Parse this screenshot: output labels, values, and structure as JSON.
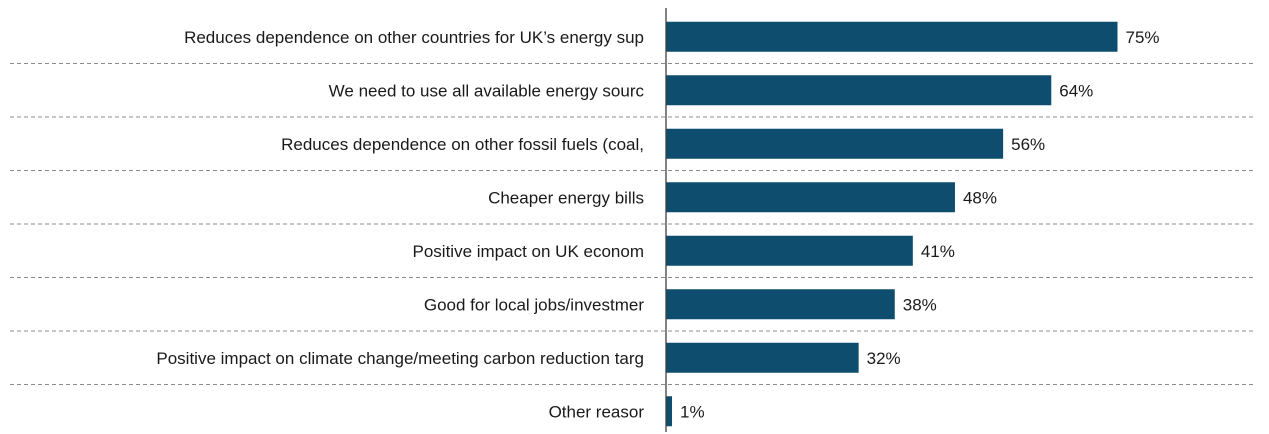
{
  "chart_data": {
    "type": "bar",
    "orientation": "horizontal",
    "categories": [
      "Reduces dependence on other countries for UK’s energy sup",
      "We need to use all available energy sourc",
      "Reduces dependence on other fossil fuels (coal,",
      "Cheaper energy bills",
      "Positive impact on UK econom",
      "Good for local jobs/investmer",
      "Positive impact on climate change/meeting carbon reduction targ",
      "Other reasor"
    ],
    "values": [
      75,
      64,
      56,
      48,
      41,
      38,
      32,
      1
    ],
    "value_labels": [
      "75%",
      "64%",
      "56%",
      "48%",
      "41%",
      "38%",
      "32%",
      "1%"
    ],
    "xlim": [
      0,
      100
    ],
    "bar_color": "#0e4d6e",
    "separator_color": "#8c8c8c",
    "grid": false,
    "legend": "none",
    "title": "",
    "xlabel": "",
    "ylabel": ""
  }
}
